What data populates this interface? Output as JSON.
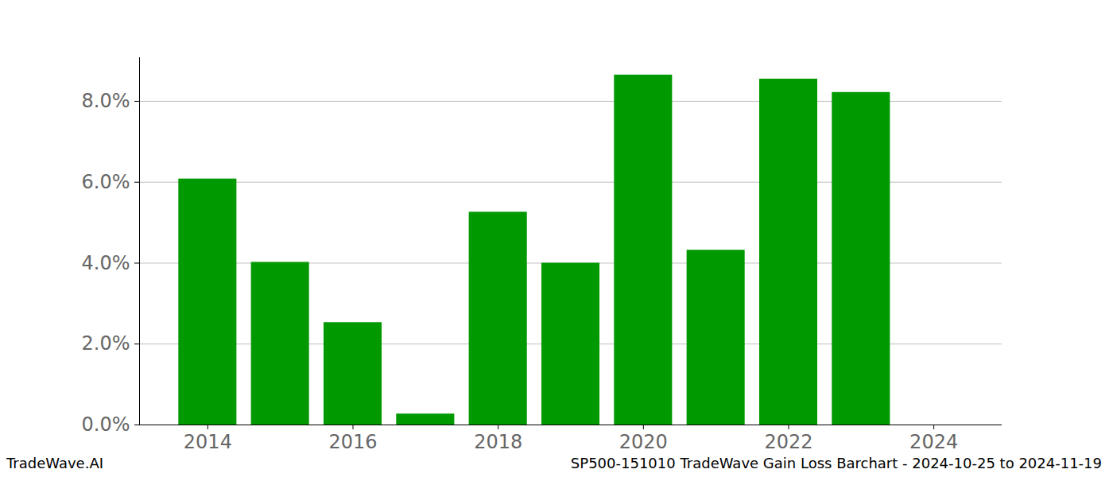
{
  "chart_data": {
    "type": "bar",
    "title": "SP500-151010 TradeWave Gain Loss Barchart - 2024-10-25 to 2024-11-19",
    "caption": "TradeWave.AI",
    "x": [
      2014,
      2015,
      2016,
      2017,
      2018,
      2019,
      2020,
      2021,
      2022,
      2023,
      2024
    ],
    "values": [
      6.08,
      4.02,
      2.53,
      0.27,
      5.26,
      4.0,
      8.65,
      4.32,
      8.55,
      8.22,
      0
    ],
    "color": "#009900",
    "xlim": [
      2013.06,
      2024.94
    ],
    "xticks": [
      2014,
      2016,
      2018,
      2020,
      2022,
      2024
    ],
    "ylim": [
      0,
      9.08
    ],
    "yticks": [
      {
        "value": 0,
        "label": "0.0%"
      },
      {
        "value": 2,
        "label": "2.0%"
      },
      {
        "value": 4,
        "label": "4.0%"
      },
      {
        "value": 6,
        "label": "6.0%"
      },
      {
        "value": 8,
        "label": "8.0%"
      }
    ],
    "grid": true
  }
}
